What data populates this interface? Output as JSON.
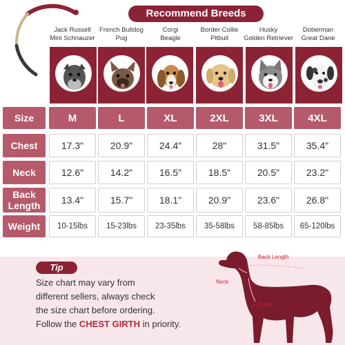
{
  "title": "Recommend Breeds",
  "breeds": [
    {
      "line1": "Jack Russell",
      "line2": "Mini Schnauzer"
    },
    {
      "line1": "French Bulldog",
      "line2": "Pug"
    },
    {
      "line1": "Corgi",
      "line2": "Beagle"
    },
    {
      "line1": "Border Collie",
      "line2": "Pitbull"
    },
    {
      "line1": "Husky",
      "line2": "Golden Retriever"
    },
    {
      "line1": "Doberman",
      "line2": "Great Dane"
    }
  ],
  "row_labels": {
    "size": "Size",
    "chest": "Chest",
    "neck": "Neck",
    "back_length": "Back Length",
    "weight": "Weight"
  },
  "sizes": [
    "M",
    "L",
    "XL",
    "2XL",
    "3XL",
    "4XL"
  ],
  "chest": [
    "17.3\"",
    "20.9\"",
    "24.4\"",
    "28\"",
    "31.5\"",
    "35.4\""
  ],
  "neck": [
    "12.6\"",
    "14.2\"",
    "16.5\"",
    "18.5\"",
    "20.5\"",
    "23.2\""
  ],
  "back_length": [
    "13.4\"",
    "15.7\"",
    "18.1\"",
    "20.9\"",
    "23.6\"",
    "26.8\""
  ],
  "weight": [
    "10-15lbs",
    "15-23lbs",
    "23-35lbs",
    "35-58lbs",
    "58-85lbs",
    "65-120lbs"
  ],
  "tip": {
    "label": "Tip",
    "line1": "Size chart may vary from",
    "line2": "different sellers, always check",
    "line3": "the size chart before ordering.",
    "line4_pre": "Follow the ",
    "line4_hl": "CHEST GIRTH",
    "line4_post": " in priority."
  },
  "measure_labels": {
    "back": "Back Length",
    "neck": "Neck",
    "chest": "Chest"
  },
  "colors": {
    "primary": "#8c2335",
    "label_bg": "#b55a6b",
    "tip_bg": "#f7e7ea",
    "highlight": "#c0263a",
    "dog": "#7a1c2c"
  }
}
